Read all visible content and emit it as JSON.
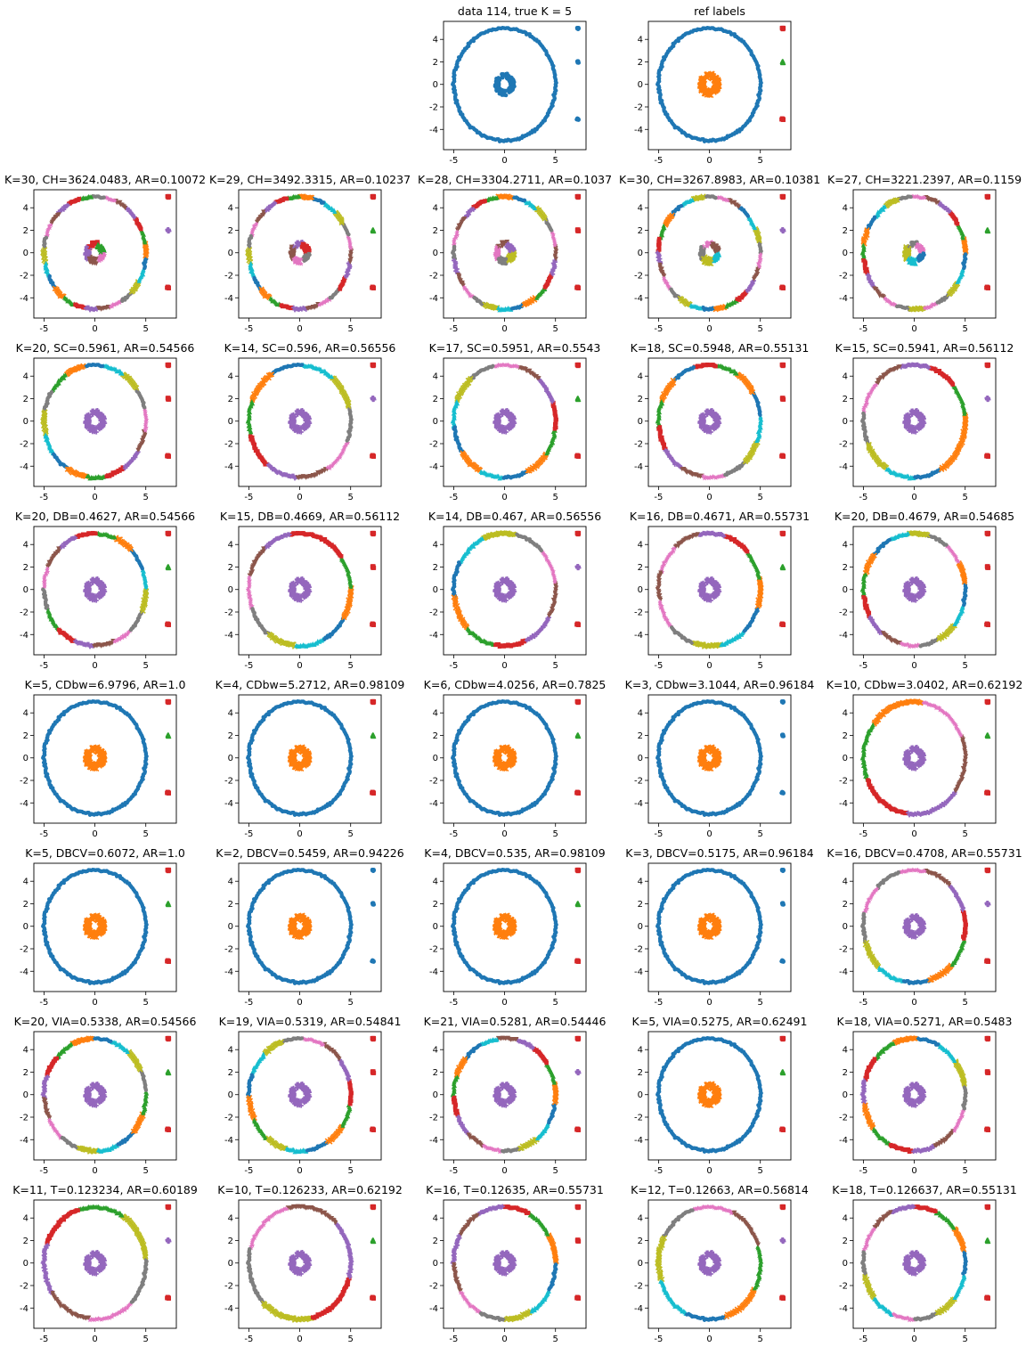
{
  "figure": {
    "palette": [
      "#1f77b4",
      "#ff7f0e",
      "#2ca02c",
      "#d62728",
      "#9467bd",
      "#8c564b",
      "#e377c2",
      "#7f7f7f",
      "#bcbd22",
      "#17becf"
    ],
    "xticks": [
      "-5",
      "0",
      "5"
    ],
    "yticks": [
      "4",
      "2",
      "0",
      "-2",
      "-4"
    ]
  },
  "chart_data": [
    {
      "type": "scatter",
      "title": "data 114, true K = 5",
      "clusters": 1
    },
    {
      "type": "scatter",
      "title": "ref labels",
      "clusters": 5
    },
    {
      "type": "scatter",
      "title": "K=30, CH=3624.0483, AR=0.10072",
      "clusters": 30
    },
    {
      "type": "scatter",
      "title": "K=29, CH=3492.3315, AR=0.10237",
      "clusters": 29
    },
    {
      "type": "scatter",
      "title": "K=28, CH=3304.2711, AR=0.1037",
      "clusters": 28
    },
    {
      "type": "scatter",
      "title": "K=30, CH=3267.8983, AR=0.10381",
      "clusters": 30
    },
    {
      "type": "scatter",
      "title": "K=27, CH=3221.2397, AR=0.1159",
      "clusters": 27
    },
    {
      "type": "scatter",
      "title": "K=20, SC=0.5961, AR=0.54566",
      "clusters": 20
    },
    {
      "type": "scatter",
      "title": "K=14, SC=0.596, AR=0.56556",
      "clusters": 14
    },
    {
      "type": "scatter",
      "title": "K=17, SC=0.5951, AR=0.5543",
      "clusters": 17
    },
    {
      "type": "scatter",
      "title": "K=18, SC=0.5948, AR=0.55131",
      "clusters": 18
    },
    {
      "type": "scatter",
      "title": "K=15, SC=0.5941, AR=0.56112",
      "clusters": 15
    },
    {
      "type": "scatter",
      "title": "K=20, DB=0.4627, AR=0.54566",
      "clusters": 20
    },
    {
      "type": "scatter",
      "title": "K=15, DB=0.4669, AR=0.56112",
      "clusters": 15
    },
    {
      "type": "scatter",
      "title": "K=14, DB=0.467, AR=0.56556",
      "clusters": 14
    },
    {
      "type": "scatter",
      "title": "K=16, DB=0.4671, AR=0.55731",
      "clusters": 16
    },
    {
      "type": "scatter",
      "title": "K=20, DB=0.4679, AR=0.54685",
      "clusters": 20
    },
    {
      "type": "scatter",
      "title": "K=5, CDbw=6.9796, AR=1.0",
      "clusters": 5
    },
    {
      "type": "scatter",
      "title": "K=4, CDbw=5.2712, AR=0.98109",
      "clusters": 4
    },
    {
      "type": "scatter",
      "title": "K=6, CDbw=4.0256, AR=0.7825",
      "clusters": 6
    },
    {
      "type": "scatter",
      "title": "K=3, CDbw=3.1044, AR=0.96184",
      "clusters": 3
    },
    {
      "type": "scatter",
      "title": "K=10, CDbw=3.0402, AR=0.62192",
      "clusters": 10
    },
    {
      "type": "scatter",
      "title": "K=5, DBCV=0.6072, AR=1.0",
      "clusters": 5
    },
    {
      "type": "scatter",
      "title": "K=2, DBCV=0.5459, AR=0.94226",
      "clusters": 2
    },
    {
      "type": "scatter",
      "title": "K=4, DBCV=0.535, AR=0.98109",
      "clusters": 4
    },
    {
      "type": "scatter",
      "title": "K=3, DBCV=0.5175, AR=0.96184",
      "clusters": 3
    },
    {
      "type": "scatter",
      "title": "K=16, DBCV=0.4708, AR=0.55731",
      "clusters": 16
    },
    {
      "type": "scatter",
      "title": "K=20, VIA=0.5338, AR=0.54566",
      "clusters": 20
    },
    {
      "type": "scatter",
      "title": "K=19, VIA=0.5319, AR=0.54841",
      "clusters": 19
    },
    {
      "type": "scatter",
      "title": "K=21, VIA=0.5281, AR=0.54446",
      "clusters": 21
    },
    {
      "type": "scatter",
      "title": "K=5, VIA=0.5275, AR=0.62491",
      "clusters": 5
    },
    {
      "type": "scatter",
      "title": "K=18, VIA=0.5271, AR=0.5483",
      "clusters": 18
    },
    {
      "type": "scatter",
      "title": "K=11, T=0.123234, AR=0.60189",
      "clusters": 11
    },
    {
      "type": "scatter",
      "title": "K=10, T=0.126233, AR=0.62192",
      "clusters": 10
    },
    {
      "type": "scatter",
      "title": "K=16, T=0.12635, AR=0.55731",
      "clusters": 16
    },
    {
      "type": "scatter",
      "title": "K=12, T=0.12663, AR=0.56814",
      "clusters": 12
    },
    {
      "type": "scatter",
      "title": "K=18, T=0.126637, AR=0.55131",
      "clusters": 18
    }
  ]
}
